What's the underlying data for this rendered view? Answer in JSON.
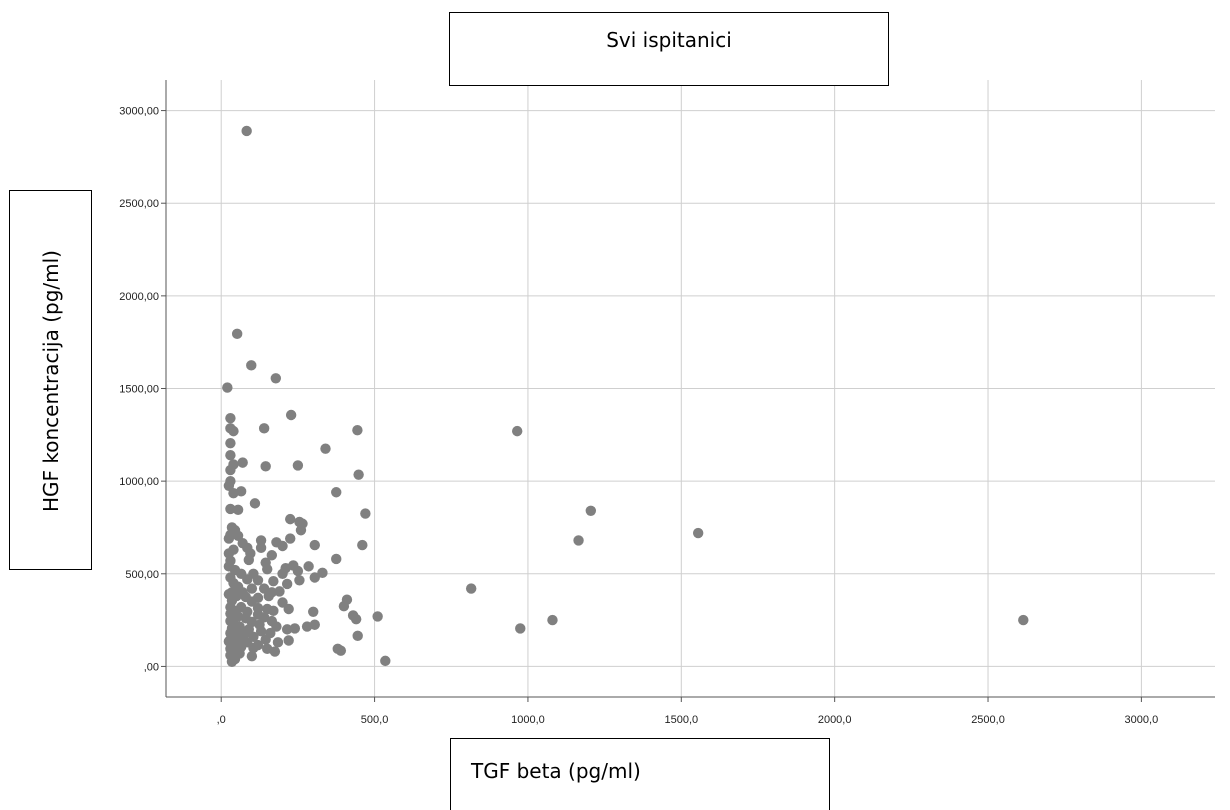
{
  "chart_data": {
    "type": "scatter",
    "title": "Svi ispitanici",
    "xlabel": "TGF beta (pg/ml)",
    "ylabel": "HGF koncentracija (pg/ml)",
    "xlim": [
      -180,
      3240
    ],
    "ylim": [
      -165,
      3165
    ],
    "xticks": [
      0,
      500,
      1000,
      1500,
      2000,
      2500,
      3000
    ],
    "xtick_labels": [
      ",0",
      "500,0",
      "1000,0",
      "1500,0",
      "2000,0",
      "2500,0",
      "3000,0"
    ],
    "yticks": [
      0,
      500,
      1000,
      1500,
      2000,
      2500,
      3000
    ],
    "ytick_labels": [
      ",00",
      "500,00",
      "1000,00",
      "1500,00",
      "2000,00",
      "2500,00",
      "3000,00"
    ],
    "grid": true,
    "marker_color": "#808080",
    "points": [
      [
        83,
        2890
      ],
      [
        52,
        1795
      ],
      [
        98,
        1625
      ],
      [
        178,
        1555
      ],
      [
        20,
        1505
      ],
      [
        228,
        1357
      ],
      [
        30,
        1340
      ],
      [
        30,
        1285
      ],
      [
        40,
        1270
      ],
      [
        140,
        1285
      ],
      [
        444,
        1275
      ],
      [
        965,
        1270
      ],
      [
        30,
        1205
      ],
      [
        340,
        1175
      ],
      [
        30,
        1140
      ],
      [
        40,
        1090
      ],
      [
        70,
        1100
      ],
      [
        145,
        1080
      ],
      [
        250,
        1085
      ],
      [
        30,
        1060
      ],
      [
        448,
        1035
      ],
      [
        30,
        1000
      ],
      [
        25,
        975
      ],
      [
        40,
        935
      ],
      [
        65,
        945
      ],
      [
        375,
        940
      ],
      [
        110,
        880
      ],
      [
        30,
        850
      ],
      [
        55,
        845
      ],
      [
        470,
        825
      ],
      [
        1205,
        840
      ],
      [
        225,
        795
      ],
      [
        255,
        780
      ],
      [
        265,
        770
      ],
      [
        35,
        750
      ],
      [
        45,
        735
      ],
      [
        260,
        735
      ],
      [
        1555,
        720
      ],
      [
        30,
        710
      ],
      [
        55,
        705
      ],
      [
        25,
        690
      ],
      [
        130,
        680
      ],
      [
        225,
        690
      ],
      [
        1165,
        680
      ],
      [
        70,
        665
      ],
      [
        180,
        670
      ],
      [
        305,
        655
      ],
      [
        460,
        655
      ],
      [
        40,
        630
      ],
      [
        85,
        640
      ],
      [
        130,
        640
      ],
      [
        200,
        650
      ],
      [
        25,
        610
      ],
      [
        95,
        610
      ],
      [
        165,
        600
      ],
      [
        375,
        580
      ],
      [
        30,
        570
      ],
      [
        90,
        575
      ],
      [
        145,
        560
      ],
      [
        235,
        545
      ],
      [
        25,
        540
      ],
      [
        210,
        530
      ],
      [
        285,
        540
      ],
      [
        45,
        520
      ],
      [
        150,
        525
      ],
      [
        250,
        515
      ],
      [
        330,
        505
      ],
      [
        65,
        500
      ],
      [
        105,
        500
      ],
      [
        200,
        500
      ],
      [
        305,
        480
      ],
      [
        30,
        480
      ],
      [
        85,
        470
      ],
      [
        120,
        465
      ],
      [
        170,
        460
      ],
      [
        255,
        465
      ],
      [
        40,
        450
      ],
      [
        215,
        445
      ],
      [
        55,
        430
      ],
      [
        100,
        420
      ],
      [
        140,
        420
      ],
      [
        815,
        420
      ],
      [
        35,
        400
      ],
      [
        70,
        400
      ],
      [
        165,
        400
      ],
      [
        190,
        405
      ],
      [
        25,
        390
      ],
      [
        50,
        380
      ],
      [
        80,
        375
      ],
      [
        120,
        370
      ],
      [
        155,
        380
      ],
      [
        410,
        360
      ],
      [
        35,
        355
      ],
      [
        100,
        350
      ],
      [
        200,
        345
      ],
      [
        400,
        325
      ],
      [
        30,
        320
      ],
      [
        65,
        320
      ],
      [
        120,
        315
      ],
      [
        150,
        310
      ],
      [
        220,
        310
      ],
      [
        45,
        300
      ],
      [
        85,
        295
      ],
      [
        170,
        300
      ],
      [
        300,
        295
      ],
      [
        30,
        285
      ],
      [
        120,
        280
      ],
      [
        430,
        275
      ],
      [
        510,
        270
      ],
      [
        55,
        270
      ],
      [
        80,
        260
      ],
      [
        140,
        265
      ],
      [
        440,
        255
      ],
      [
        1080,
        250
      ],
      [
        2615,
        250
      ],
      [
        30,
        245
      ],
      [
        100,
        240
      ],
      [
        165,
        245
      ],
      [
        40,
        230
      ],
      [
        125,
        225
      ],
      [
        305,
        225
      ],
      [
        60,
        215
      ],
      [
        180,
        215
      ],
      [
        280,
        215
      ],
      [
        35,
        205
      ],
      [
        90,
        200
      ],
      [
        215,
        200
      ],
      [
        240,
        205
      ],
      [
        975,
        205
      ],
      [
        50,
        190
      ],
      [
        130,
        190
      ],
      [
        30,
        180
      ],
      [
        75,
        175
      ],
      [
        160,
        180
      ],
      [
        445,
        165
      ],
      [
        40,
        165
      ],
      [
        105,
        160
      ],
      [
        30,
        145
      ],
      [
        60,
        145
      ],
      [
        145,
        145
      ],
      [
        220,
        140
      ],
      [
        25,
        135
      ],
      [
        85,
        130
      ],
      [
        185,
        130
      ],
      [
        45,
        120
      ],
      [
        120,
        115
      ],
      [
        65,
        105
      ],
      [
        105,
        100
      ],
      [
        30,
        95
      ],
      [
        150,
        95
      ],
      [
        380,
        95
      ],
      [
        45,
        85
      ],
      [
        390,
        85
      ],
      [
        175,
        80
      ],
      [
        60,
        70
      ],
      [
        30,
        60
      ],
      [
        100,
        55
      ],
      [
        45,
        40
      ],
      [
        35,
        25
      ],
      [
        535,
        30
      ]
    ]
  }
}
